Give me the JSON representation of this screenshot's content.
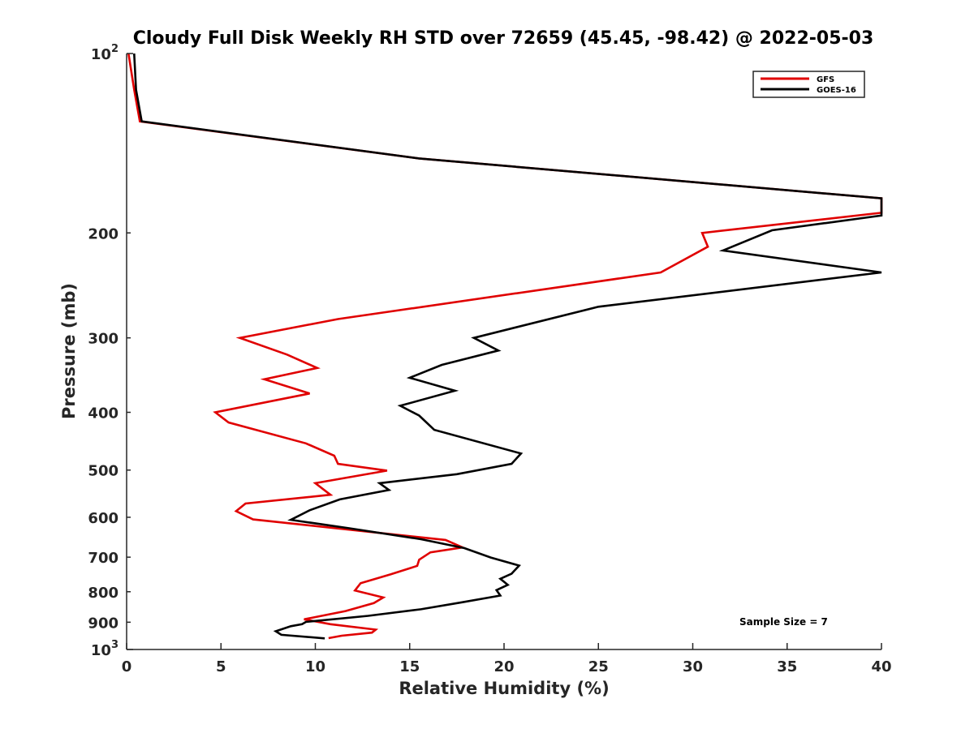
{
  "chart_data": {
    "type": "line",
    "title": "Cloudy Full Disk Weekly RH STD over 72659 (45.45, -98.42) @ 2022-05-03",
    "xlabel": "Relative Humidity (%)",
    "ylabel": "Pressure (mb)",
    "xlim": [
      0,
      40
    ],
    "ylim": [
      100,
      1000
    ],
    "y_scale": "log",
    "y_reversed": true,
    "grid": false,
    "legend_position": "top-right",
    "x_ticks": [
      "0",
      "5",
      "10",
      "15",
      "20",
      "25",
      "30",
      "35",
      "40"
    ],
    "y_ticks": [
      {
        "value": 100,
        "base": "10",
        "exp": "2"
      },
      {
        "value": 200,
        "label": "200"
      },
      {
        "value": 300,
        "label": "300"
      },
      {
        "value": 400,
        "label": "400"
      },
      {
        "value": 500,
        "label": "500"
      },
      {
        "value": 600,
        "label": "600"
      },
      {
        "value": 700,
        "label": "700"
      },
      {
        "value": 800,
        "label": "800"
      },
      {
        "value": 900,
        "label": "900"
      },
      {
        "value": 1000,
        "base": "10",
        "exp": "3"
      }
    ],
    "series": [
      {
        "name": "GFS",
        "color": "#e00000",
        "points": [
          [
            0.1,
            100
          ],
          [
            0.4,
            115
          ],
          [
            0.7,
            130
          ],
          [
            15.5,
            150
          ],
          [
            40,
            175
          ],
          [
            40,
            185
          ],
          [
            30.5,
            200
          ],
          [
            30.8,
            211
          ],
          [
            28.3,
            233
          ],
          [
            11.2,
            279
          ],
          [
            6.0,
            300
          ],
          [
            8.5,
            320
          ],
          [
            10.1,
            337
          ],
          [
            7.3,
            352
          ],
          [
            9.7,
            372
          ],
          [
            4.7,
            400
          ],
          [
            5.4,
            416
          ],
          [
            9.5,
            451
          ],
          [
            11.0,
            473
          ],
          [
            11.2,
            488
          ],
          [
            13.8,
            501
          ],
          [
            10.0,
            526
          ],
          [
            10.8,
            550
          ],
          [
            6.3,
            569
          ],
          [
            5.8,
            586
          ],
          [
            6.7,
            605
          ],
          [
            16.9,
            655
          ],
          [
            17.8,
            674
          ],
          [
            16.1,
            687
          ],
          [
            15.5,
            707
          ],
          [
            15.4,
            724
          ],
          [
            14.0,
            748
          ],
          [
            12.4,
            774
          ],
          [
            12.1,
            796
          ],
          [
            13.6,
            818
          ],
          [
            13.1,
            836
          ],
          [
            11.6,
            862
          ],
          [
            9.4,
            890
          ],
          [
            10.8,
            907
          ],
          [
            13.2,
            926
          ],
          [
            13.0,
            937
          ],
          [
            11.4,
            948
          ],
          [
            10.7,
            957
          ]
        ]
      },
      {
        "name": "GOES-16",
        "color": "#000000",
        "points": [
          [
            0.4,
            100
          ],
          [
            0.5,
            115
          ],
          [
            0.8,
            130
          ],
          [
            15.5,
            150
          ],
          [
            40,
            175
          ],
          [
            40,
            187
          ],
          [
            34.2,
            198
          ],
          [
            31.6,
            214
          ],
          [
            40,
            233
          ],
          [
            25.0,
            266
          ],
          [
            18.4,
            300
          ],
          [
            19.7,
            315
          ],
          [
            16.7,
            333
          ],
          [
            15.0,
            350
          ],
          [
            17.4,
            368
          ],
          [
            14.5,
            390
          ],
          [
            15.5,
            405
          ],
          [
            16.3,
            428
          ],
          [
            20.9,
            469
          ],
          [
            20.4,
            488
          ],
          [
            17.5,
            508
          ],
          [
            13.4,
            526
          ],
          [
            13.9,
            540
          ],
          [
            11.3,
            560
          ],
          [
            9.7,
            584
          ],
          [
            8.7,
            606
          ],
          [
            11.8,
            626
          ],
          [
            15.6,
            653
          ],
          [
            17.9,
            676
          ],
          [
            19.3,
            701
          ],
          [
            20.8,
            723
          ],
          [
            20.4,
            746
          ],
          [
            19.8,
            761
          ],
          [
            20.2,
            779
          ],
          [
            19.6,
            795
          ],
          [
            19.8,
            812
          ],
          [
            17.8,
            833
          ],
          [
            15.6,
            856
          ],
          [
            12.8,
            878
          ],
          [
            9.5,
            899
          ],
          [
            9.3,
            907
          ],
          [
            8.7,
            914
          ],
          [
            7.9,
            932
          ],
          [
            8.2,
            945
          ],
          [
            10.5,
            958
          ]
        ]
      }
    ],
    "legend": [
      "GFS",
      "GOES-16"
    ],
    "annotation": "Sample Size = 7"
  }
}
